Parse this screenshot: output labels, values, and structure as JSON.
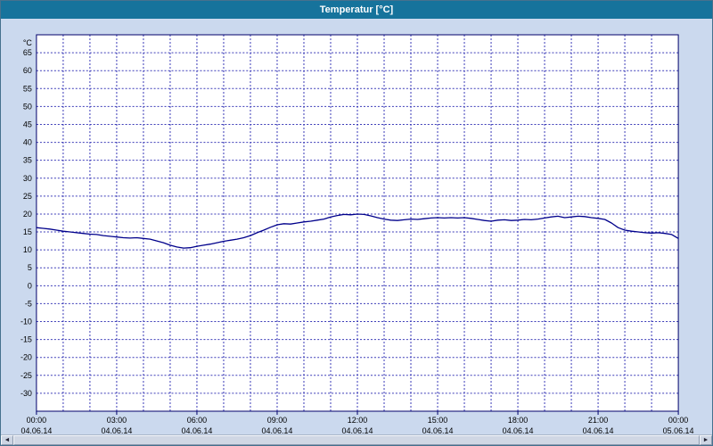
{
  "window": {
    "title": "Temperatur [°C]"
  },
  "colors": {
    "titlebar_bg": "#16739c",
    "titlebar_text": "#ffffff",
    "frame_bg": "#cbd9ee",
    "plot_bg": "#ffffff",
    "grid_color": "#3b3bb8",
    "axis_color": "#00006b",
    "line_color": "#00008b",
    "label_color": "#000000"
  },
  "chart_data": {
    "type": "line",
    "title": "Temperatur [°C]",
    "xlabel": "",
    "ylabel": "°C",
    "ylim": [
      -35,
      70
    ],
    "ytick_min": -30,
    "ytick_max": 65,
    "ytick_step": 5,
    "xlim_hours": [
      0,
      24
    ],
    "x_gridline_step_hours": 1,
    "grid": "dashed",
    "legend_position": "none",
    "x_ticks": [
      {
        "hour": 0,
        "time": "00:00",
        "date": "04.06.14"
      },
      {
        "hour": 3,
        "time": "03:00",
        "date": "04.06.14"
      },
      {
        "hour": 6,
        "time": "06:00",
        "date": "04.06.14"
      },
      {
        "hour": 9,
        "time": "09:00",
        "date": "04.06.14"
      },
      {
        "hour": 12,
        "time": "12:00",
        "date": "04.06.14"
      },
      {
        "hour": 15,
        "time": "15:00",
        "date": "04.06.14"
      },
      {
        "hour": 18,
        "time": "18:00",
        "date": "04.06.14"
      },
      {
        "hour": 21,
        "time": "21:00",
        "date": "04.06.14"
      },
      {
        "hour": 24,
        "time": "00:00",
        "date": "05.06.14"
      }
    ],
    "series": [
      {
        "name": "Temperatur",
        "color": "#00008b",
        "unit": "°C",
        "start_hour": 0,
        "interval_hours": 0.25,
        "values": [
          16.2,
          16.0,
          15.8,
          15.5,
          15.2,
          15.0,
          14.8,
          14.6,
          14.4,
          14.3,
          14.0,
          13.8,
          13.6,
          13.4,
          13.3,
          13.4,
          13.2,
          13.0,
          12.5,
          12.0,
          11.3,
          10.8,
          10.5,
          10.6,
          11.0,
          11.3,
          11.6,
          12.0,
          12.4,
          12.7,
          13.0,
          13.4,
          14.0,
          14.8,
          15.5,
          16.3,
          17.0,
          17.3,
          17.2,
          17.5,
          17.8,
          18.0,
          18.3,
          18.6,
          19.2,
          19.6,
          19.9,
          19.8,
          20.0,
          19.9,
          19.5,
          19.0,
          18.6,
          18.3,
          18.2,
          18.4,
          18.6,
          18.5,
          18.7,
          18.9,
          19.0,
          18.9,
          19.0,
          18.9,
          19.0,
          18.8,
          18.5,
          18.2,
          18.0,
          18.3,
          18.4,
          18.2,
          18.3,
          18.5,
          18.4,
          18.6,
          18.9,
          19.2,
          19.4,
          19.0,
          19.2,
          19.4,
          19.3,
          19.0,
          18.8,
          18.5,
          17.5,
          16.2,
          15.5,
          15.2,
          15.0,
          14.8,
          14.7,
          14.8,
          14.6,
          14.3,
          13.2
        ]
      }
    ]
  },
  "scrollbar": {
    "left_arrow": "◄",
    "right_arrow": "►"
  }
}
